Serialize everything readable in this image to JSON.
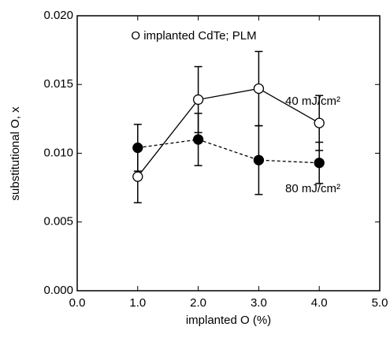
{
  "chart_data": {
    "type": "line",
    "title": "O implanted CdTe; PLM",
    "x_label": "implanted O (%)",
    "y_label": "substitutional O, x",
    "xlim": [
      0,
      5
    ],
    "ylim": [
      0,
      0.02
    ],
    "xticks": [
      {
        "value": 0,
        "label": "0.0"
      },
      {
        "value": 1,
        "label": "1.0"
      },
      {
        "value": 2,
        "label": "2.0"
      },
      {
        "value": 3,
        "label": "3.0"
      },
      {
        "value": 4,
        "label": "4.0"
      },
      {
        "value": 5,
        "label": "5.0"
      }
    ],
    "yticks": [
      {
        "value": 0,
        "label": "0.000"
      },
      {
        "value": 0.005,
        "label": "0.005"
      },
      {
        "value": 0.01,
        "label": "0.010"
      },
      {
        "value": 0.015,
        "label": "0.015"
      },
      {
        "value": 0.02,
        "label": "0.020"
      }
    ],
    "series": [
      {
        "name": "40 mJ/cm²",
        "color": "#000000",
        "marker": "open",
        "dash": false,
        "x": [
          1,
          2,
          3,
          4
        ],
        "values": [
          0.0083,
          0.0139,
          0.0147,
          0.0122
        ],
        "errors": [
          0.0019,
          0.0024,
          0.0027,
          0.002
        ]
      },
      {
        "name": "80 mJ/cm²",
        "color": "#000000",
        "marker": "filled",
        "dash": true,
        "x": [
          1,
          2,
          3,
          4
        ],
        "values": [
          0.0104,
          0.011,
          0.0095,
          0.0093
        ],
        "errors": [
          0.0017,
          0.0019,
          0.0025,
          0.0015
        ]
      }
    ]
  }
}
